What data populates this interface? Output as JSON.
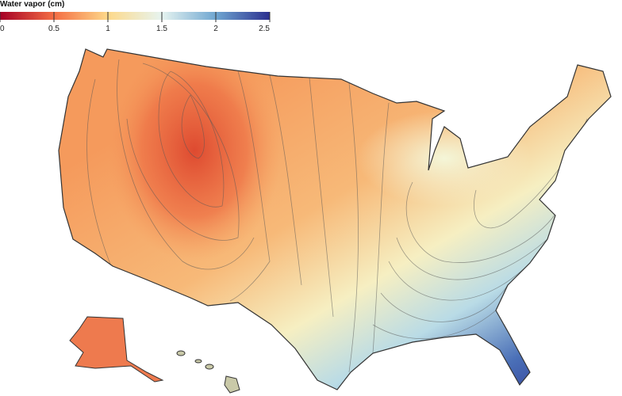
{
  "legend": {
    "title": "Water vapor (cm)",
    "range": [
      0,
      2.5
    ],
    "ticks": [
      0,
      0.5,
      1,
      1.5,
      2,
      2.5
    ]
  }
}
